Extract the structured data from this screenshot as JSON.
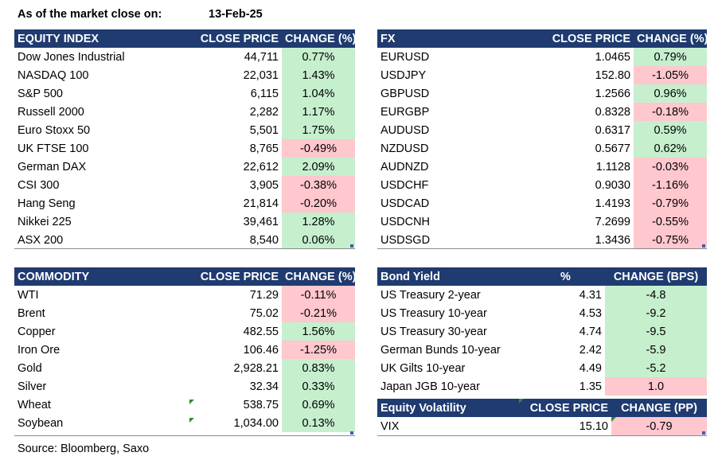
{
  "header": {
    "label": "As of the market close on:",
    "date": "13-Feb-25"
  },
  "equity": {
    "columns": [
      "EQUITY INDEX",
      "CLOSE PRICE",
      "CHANGE (%)"
    ],
    "rows": [
      {
        "name": "Dow Jones Industrial",
        "close": "44,711",
        "change": "0.77%",
        "dir": "pos"
      },
      {
        "name": "NASDAQ 100",
        "close": "22,031",
        "change": "1.43%",
        "dir": "pos"
      },
      {
        "name": "S&P 500",
        "close": "6,115",
        "change": "1.04%",
        "dir": "pos"
      },
      {
        "name": "Russell 2000",
        "close": "2,282",
        "change": "1.17%",
        "dir": "pos"
      },
      {
        "name": "Euro Stoxx 50",
        "close": "5,501",
        "change": "1.75%",
        "dir": "pos"
      },
      {
        "name": "UK FTSE 100",
        "close": "8,765",
        "change": "-0.49%",
        "dir": "neg"
      },
      {
        "name": "German DAX",
        "close": "22,612",
        "change": "2.09%",
        "dir": "pos"
      },
      {
        "name": "CSI 300",
        "close": "3,905",
        "change": "-0.38%",
        "dir": "neg"
      },
      {
        "name": "Hang Seng",
        "close": "21,814",
        "change": "-0.20%",
        "dir": "neg"
      },
      {
        "name": "Nikkei 225",
        "close": "39,461",
        "change": "1.28%",
        "dir": "pos"
      },
      {
        "name": "ASX 200",
        "close": "8,540",
        "change": "0.06%",
        "dir": "pos"
      }
    ]
  },
  "fx": {
    "columns": [
      "FX",
      "CLOSE PRICE",
      "CHANGE (%)"
    ],
    "rows": [
      {
        "name": "EURUSD",
        "close": "1.0465",
        "change": "0.79%",
        "dir": "pos"
      },
      {
        "name": "USDJPY",
        "close": "152.80",
        "change": "-1.05%",
        "dir": "neg"
      },
      {
        "name": "GBPUSD",
        "close": "1.2566",
        "change": "0.96%",
        "dir": "pos"
      },
      {
        "name": "EURGBP",
        "close": "0.8328",
        "change": "-0.18%",
        "dir": "neg"
      },
      {
        "name": "AUDUSD",
        "close": "0.6317",
        "change": "0.59%",
        "dir": "pos"
      },
      {
        "name": "NZDUSD",
        "close": "0.5677",
        "change": "0.62%",
        "dir": "pos"
      },
      {
        "name": "AUDNZD",
        "close": "1.1128",
        "change": "-0.03%",
        "dir": "neg"
      },
      {
        "name": "USDCHF",
        "close": "0.9030",
        "change": "-1.16%",
        "dir": "neg"
      },
      {
        "name": "USDCAD",
        "close": "1.4193",
        "change": "-0.79%",
        "dir": "neg"
      },
      {
        "name": "USDCNH",
        "close": "7.2699",
        "change": "-0.55%",
        "dir": "neg"
      },
      {
        "name": "USDSGD",
        "close": "1.3436",
        "change": "-0.75%",
        "dir": "neg"
      }
    ]
  },
  "commodity": {
    "columns": [
      "COMMODITY",
      "CLOSE PRICE",
      "CHANGE (%)"
    ],
    "rows": [
      {
        "name": "WTI",
        "close": "71.29",
        "change": "-0.11%",
        "dir": "neg"
      },
      {
        "name": "Brent",
        "close": "75.02",
        "change": "-0.21%",
        "dir": "neg"
      },
      {
        "name": "Copper",
        "close": "482.55",
        "change": "1.56%",
        "dir": "pos"
      },
      {
        "name": "Iron Ore",
        "close": "106.46",
        "change": "-1.25%",
        "dir": "neg"
      },
      {
        "name": "Gold",
        "close": "2,928.21",
        "change": "0.83%",
        "dir": "pos"
      },
      {
        "name": "Silver",
        "close": "32.34",
        "change": "0.33%",
        "dir": "pos"
      },
      {
        "name": "Wheat",
        "close": "538.75",
        "change": "0.69%",
        "dir": "pos"
      },
      {
        "name": "Soybean",
        "close": "1,034.00",
        "change": "0.13%",
        "dir": "pos"
      }
    ]
  },
  "bond": {
    "columns": [
      "Bond Yield",
      "%",
      "CHANGE (BPS)"
    ],
    "rows": [
      {
        "name": "US Treasury 2-year",
        "close": "4.31",
        "change": "-4.8",
        "dir": "pos"
      },
      {
        "name": "US Treasury 10-year",
        "close": "4.53",
        "change": "-9.2",
        "dir": "pos"
      },
      {
        "name": "US Treasury 30-year",
        "close": "4.74",
        "change": "-9.5",
        "dir": "pos"
      },
      {
        "name": "German Bunds 10-year",
        "close": "2.42",
        "change": "-5.9",
        "dir": "pos"
      },
      {
        "name": "UK Gilts 10-year",
        "close": "4.49",
        "change": "-5.2",
        "dir": "pos"
      },
      {
        "name": "Japan JGB 10-year",
        "close": "1.35",
        "change": "1.0",
        "dir": "neg"
      }
    ]
  },
  "volatility": {
    "columns": [
      "Equity Volatility",
      "CLOSE PRICE",
      "CHANGE (PP)"
    ],
    "rows": [
      {
        "name": "VIX",
        "close": "15.10",
        "change": "-0.79",
        "dir": "neg"
      }
    ]
  },
  "footer": {
    "source": "Source: Bloomberg, Saxo"
  },
  "colors": {
    "header_bg": "#1f3b70",
    "positive": "#c6efce",
    "negative": "#ffc7ce"
  }
}
